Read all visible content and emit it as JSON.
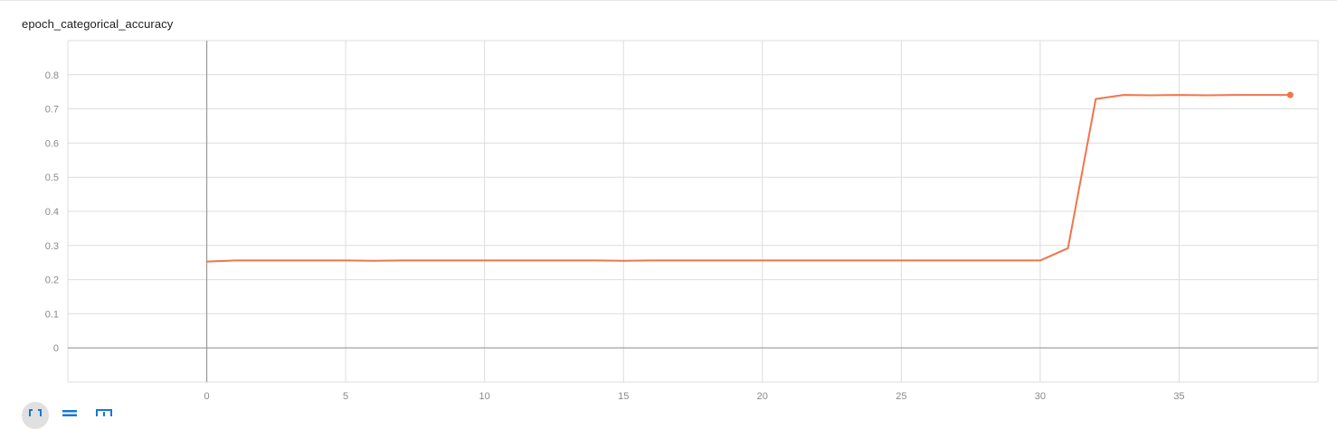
{
  "title": "epoch_categorical_accuracy",
  "colors": {
    "series": "#f0754a",
    "grid": "#dddddd",
    "axis": "#999999",
    "tick_text": "#8a8a8a",
    "toolbar_icon": "#1976d2"
  },
  "toolbar": {
    "buttons": [
      {
        "icon": "fit-domain-icon"
      },
      {
        "icon": "toggle-log-scale-icon"
      },
      {
        "icon": "download-data-icon"
      }
    ]
  },
  "chart_data": {
    "type": "line",
    "title": "epoch_categorical_accuracy",
    "xlabel": "",
    "ylabel": "",
    "xlim": [
      -5,
      40
    ],
    "ylim": [
      -0.1,
      0.9
    ],
    "x_ticks": [
      0,
      5,
      10,
      15,
      20,
      25,
      30,
      35
    ],
    "y_ticks": [
      0,
      0.1,
      0.2,
      0.3,
      0.4,
      0.5,
      0.6,
      0.7,
      0.8
    ],
    "grid": true,
    "legend": "none",
    "series": [
      {
        "x": [
          0,
          1,
          2,
          3,
          4,
          5,
          6,
          7,
          8,
          9,
          10,
          11,
          12,
          13,
          14,
          15,
          16,
          17,
          18,
          19,
          20,
          21,
          22,
          23,
          24,
          25,
          26,
          27,
          28,
          29,
          30,
          31,
          32,
          33,
          34,
          35,
          36,
          37,
          38,
          39
        ],
        "values": [
          0.253,
          0.256,
          0.256,
          0.256,
          0.256,
          0.256,
          0.255,
          0.256,
          0.256,
          0.256,
          0.256,
          0.256,
          0.256,
          0.256,
          0.256,
          0.255,
          0.256,
          0.256,
          0.256,
          0.256,
          0.256,
          0.256,
          0.256,
          0.256,
          0.256,
          0.256,
          0.256,
          0.256,
          0.256,
          0.256,
          0.256,
          0.292,
          0.729,
          0.741,
          0.74,
          0.741,
          0.74,
          0.741,
          0.741,
          0.741
        ]
      }
    ]
  }
}
